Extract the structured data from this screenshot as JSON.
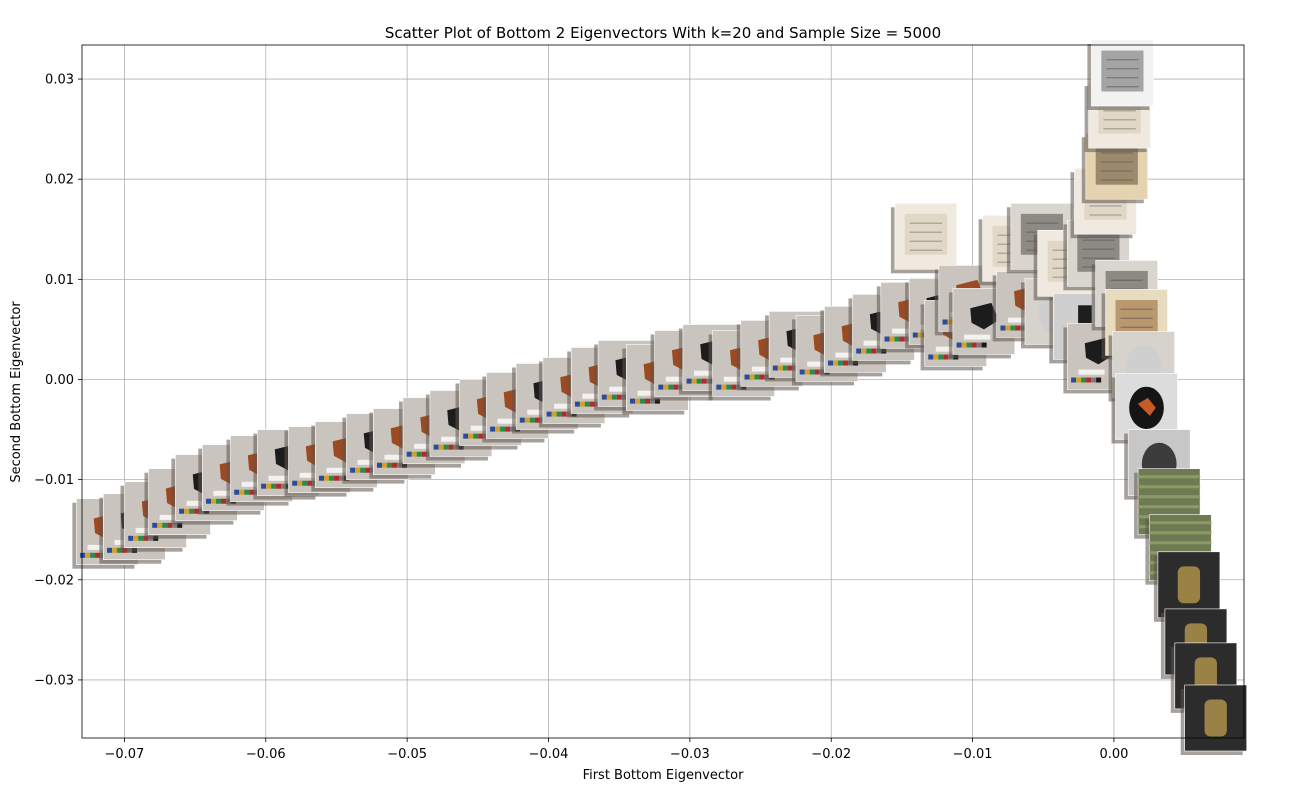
{
  "chart_data": {
    "type": "scatter",
    "title": "Scatter Plot of Bottom 2 Eigenvectors With k=20 and Sample Size = 5000",
    "xlabel": "First Bottom Eigenvector",
    "ylabel": "Second Bottom Eigenvector",
    "xlim": [
      -0.073,
      0.0092
    ],
    "ylim": [
      -0.0358,
      0.0334
    ],
    "grid": true,
    "x_ticks": [
      -0.07,
      -0.06,
      -0.05,
      -0.04,
      -0.03,
      -0.02,
      -0.01,
      0.0
    ],
    "x_tick_labels": [
      "−0.07",
      "−0.06",
      "−0.05",
      "−0.04",
      "−0.03",
      "−0.02",
      "−0.01",
      "0.00"
    ],
    "y_ticks": [
      -0.03,
      -0.02,
      -0.01,
      0.0,
      0.01,
      0.02,
      0.03
    ],
    "y_tick_labels": [
      "−0.03",
      "−0.02",
      "−0.01",
      "0.00",
      "0.01",
      "0.02",
      "0.03"
    ],
    "marker": "image thumbnails of museum artworks",
    "points": [
      {
        "x": -0.0712,
        "y": -0.0152,
        "thumb": "shard-sherd"
      },
      {
        "x": -0.0693,
        "y": -0.0147,
        "thumb": "shard-sherd"
      },
      {
        "x": -0.0678,
        "y": -0.0135,
        "thumb": "shard-sherd"
      },
      {
        "x": -0.0661,
        "y": -0.0122,
        "thumb": "shard-sherd"
      },
      {
        "x": -0.0642,
        "y": -0.0108,
        "thumb": "shard-sherd"
      },
      {
        "x": -0.0623,
        "y": -0.0098,
        "thumb": "shard-sherd"
      },
      {
        "x": -0.0603,
        "y": -0.0089,
        "thumb": "shard-sherd"
      },
      {
        "x": -0.0584,
        "y": -0.0083,
        "thumb": "shard-sherd"
      },
      {
        "x": -0.0562,
        "y": -0.008,
        "thumb": "shard-sherd"
      },
      {
        "x": -0.0543,
        "y": -0.0075,
        "thumb": "shard-sherd"
      },
      {
        "x": -0.0521,
        "y": -0.0067,
        "thumb": "shard-sherd"
      },
      {
        "x": -0.0502,
        "y": -0.0062,
        "thumb": "shard-sherd"
      },
      {
        "x": -0.0481,
        "y": -0.0051,
        "thumb": "shard-sherd"
      },
      {
        "x": -0.0462,
        "y": -0.0044,
        "thumb": "shard-sherd"
      },
      {
        "x": -0.0441,
        "y": -0.0033,
        "thumb": "shard-sherd"
      },
      {
        "x": -0.0422,
        "y": -0.0026,
        "thumb": "shard-sherd"
      },
      {
        "x": -0.0401,
        "y": -0.0017,
        "thumb": "shard-sherd"
      },
      {
        "x": -0.0382,
        "y": -0.0011,
        "thumb": "shard-sherd"
      },
      {
        "x": -0.0362,
        "y": -0.0001,
        "thumb": "shard-sherd"
      },
      {
        "x": -0.0343,
        "y": 0.0006,
        "thumb": "shard-sherd"
      },
      {
        "x": -0.0323,
        "y": 0.0002,
        "thumb": "shard-sherd"
      },
      {
        "x": -0.0303,
        "y": 0.0016,
        "thumb": "shard-sherd"
      },
      {
        "x": -0.0283,
        "y": 0.0022,
        "thumb": "shard-sherd"
      },
      {
        "x": -0.0262,
        "y": 0.0016,
        "thumb": "shard-sherd"
      },
      {
        "x": -0.0242,
        "y": 0.0026,
        "thumb": "shard-sherd"
      },
      {
        "x": -0.0222,
        "y": 0.0035,
        "thumb": "shard-sherd"
      },
      {
        "x": -0.0203,
        "y": 0.0031,
        "thumb": "shard-sherd"
      },
      {
        "x": -0.0183,
        "y": 0.004,
        "thumb": "shard-sherd"
      },
      {
        "x": -0.0163,
        "y": 0.0052,
        "thumb": "shard-sherd"
      },
      {
        "x": -0.0143,
        "y": 0.0064,
        "thumb": "shard-sherd"
      },
      {
        "x": -0.0133,
        "y": 0.0143,
        "thumb": "document"
      },
      {
        "x": -0.0123,
        "y": 0.0068,
        "thumb": "shard-sherd"
      },
      {
        "x": -0.0112,
        "y": 0.0046,
        "thumb": "shard-sherd"
      },
      {
        "x": -0.0102,
        "y": 0.0081,
        "thumb": "shard-sherd"
      },
      {
        "x": -0.0092,
        "y": 0.0058,
        "thumb": "shard-sherd"
      },
      {
        "x": -0.0071,
        "y": 0.0131,
        "thumb": "document"
      },
      {
        "x": -0.0061,
        "y": 0.0075,
        "thumb": "shard-sherd"
      },
      {
        "x": -0.0051,
        "y": 0.0143,
        "thumb": "print"
      },
      {
        "x": -0.0041,
        "y": 0.0068,
        "thumb": "ceramic-vessel"
      },
      {
        "x": -0.0032,
        "y": 0.0116,
        "thumb": "document"
      },
      {
        "x": -0.0021,
        "y": 0.0053,
        "thumb": "figurine"
      },
      {
        "x": -0.0011,
        "y": 0.0126,
        "thumb": "print"
      },
      {
        "x": -0.0006,
        "y": 0.0178,
        "thumb": "document"
      },
      {
        "x": -0.0011,
        "y": 0.0023,
        "thumb": "shard-sherd"
      },
      {
        "x": 0.0002,
        "y": 0.0213,
        "thumb": "manuscript"
      },
      {
        "x": 0.0004,
        "y": 0.0264,
        "thumb": "document"
      },
      {
        "x": 0.0006,
        "y": 0.0306,
        "thumb": "seal-stamp"
      },
      {
        "x": 0.0009,
        "y": 0.0086,
        "thumb": "print"
      },
      {
        "x": 0.0016,
        "y": 0.0057,
        "thumb": "painting"
      },
      {
        "x": 0.0021,
        "y": 0.0015,
        "thumb": "ceramic-vessel"
      },
      {
        "x": 0.0023,
        "y": -0.0027,
        "thumb": "amphora"
      },
      {
        "x": 0.0032,
        "y": -0.0083,
        "thumb": "lidded-jar"
      },
      {
        "x": 0.0039,
        "y": -0.0122,
        "thumb": "textile"
      },
      {
        "x": 0.0047,
        "y": -0.0168,
        "thumb": "textile"
      },
      {
        "x": 0.0053,
        "y": -0.0205,
        "thumb": "metal-object"
      },
      {
        "x": 0.0058,
        "y": -0.0262,
        "thumb": "metal-object"
      },
      {
        "x": 0.0065,
        "y": -0.0296,
        "thumb": "metal-object"
      },
      {
        "x": 0.0072,
        "y": -0.0338,
        "thumb": "metal-object"
      }
    ]
  },
  "thumb_colors": {
    "shard-sherd": {
      "bg": "#c9c4bd",
      "obj": "#9c4a22",
      "label": "#f4f2ee"
    },
    "document": {
      "bg": "#efe9df",
      "obj": "#d7ccb8",
      "label": "#ffffff"
    },
    "print": {
      "bg": "#d9d6d0",
      "obj": "#5a5550",
      "label": "#ffffff"
    },
    "ceramic-vessel": {
      "bg": "#d6d2cc",
      "obj": "#cfcfcf",
      "label": "#ffffff"
    },
    "figurine": {
      "bg": "#cfcfcf",
      "obj": "#1e1e1e",
      "label": "#ffffff"
    },
    "manuscript": {
      "bg": "#e4d3ae",
      "obj": "#6b5a40",
      "label": "#ffffff"
    },
    "seal-stamp": {
      "bg": "#f2f2f2",
      "obj": "#6f6f6f",
      "label": "#ffffff"
    },
    "painting": {
      "bg": "#e8dcc0",
      "obj": "#9a6a3a",
      "label": "#ffffff"
    },
    "amphora": {
      "bg": "#dcdcdc",
      "obj": "#151515",
      "label": "#ffffff"
    },
    "lidded-jar": {
      "bg": "#c7c7c7",
      "obj": "#3b3b3b",
      "label": "#ffffff"
    },
    "textile": {
      "bg": "#6e7a52",
      "obj": "#8e9a66",
      "label": "#ffffff"
    },
    "metal-object": {
      "bg": "#2c2c2c",
      "obj": "#9a8145",
      "label": "#ffffff"
    }
  },
  "swatch_colors": [
    "#2a4c9a",
    "#d4a12a",
    "#2c8a48",
    "#b32a2a",
    "#7a7a7a",
    "#1a1a1a"
  ]
}
